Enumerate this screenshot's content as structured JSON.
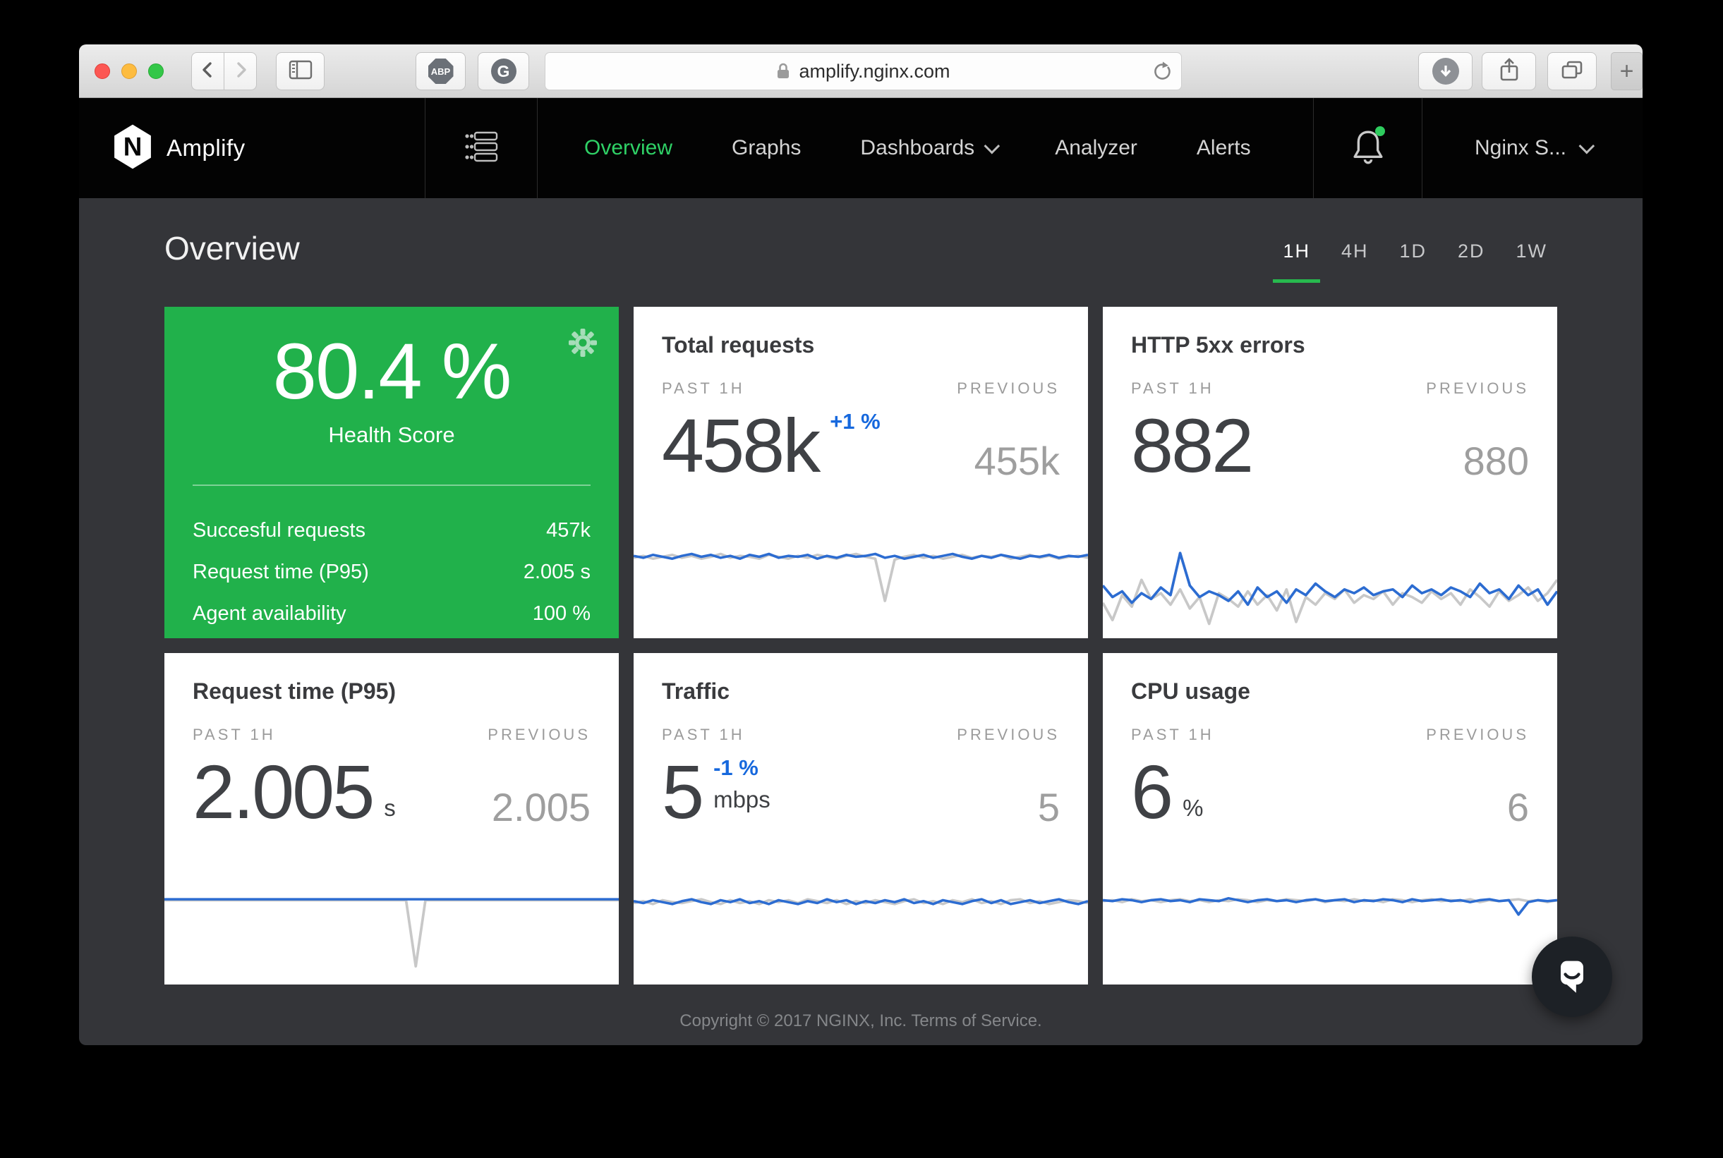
{
  "browser": {
    "url": "amplify.nginx.com",
    "extension_abp": "ABP",
    "extension_g": "G",
    "new_tab": "+"
  },
  "nav": {
    "logo_letter": "N",
    "brand": "Amplify",
    "items": [
      {
        "label": "Overview"
      },
      {
        "label": "Graphs"
      },
      {
        "label": "Dashboards"
      },
      {
        "label": "Analyzer"
      },
      {
        "label": "Alerts"
      }
    ],
    "account": "Nginx S..."
  },
  "page": {
    "title": "Overview",
    "time_ranges": [
      "1H",
      "4H",
      "1D",
      "2D",
      "1W"
    ],
    "active_range": "1H"
  },
  "labels": {
    "period": "PAST 1H",
    "previous": "PREVIOUS"
  },
  "health_card": {
    "score": "80.4 %",
    "label": "Health Score",
    "rows": [
      {
        "label": "Succesful requests",
        "value": "457k"
      },
      {
        "label": "Request time (P95)",
        "value": "2.005 s"
      },
      {
        "label": "Agent availability",
        "value": "100 %"
      }
    ]
  },
  "metric_cards": [
    {
      "title": "Total requests",
      "value": "458k",
      "delta": "+1 %",
      "previous": "455k"
    },
    {
      "title": "HTTP 5xx errors",
      "value": "882",
      "previous": "880"
    },
    {
      "title": "Request time (P95)",
      "value": "2.005",
      "unit": "s",
      "previous": "2.005"
    },
    {
      "title": "Traffic",
      "value": "5",
      "delta": "-1 %",
      "unit": "mbps",
      "previous": "5"
    },
    {
      "title": "CPU usage",
      "value": "6",
      "unit": "%",
      "previous": "6"
    }
  ],
  "footer": {
    "copyright": "Copyright © 2017 NGINX, Inc.",
    "terms": "Terms of Service."
  },
  "colors": {
    "health_green": "#21b14b",
    "nav_active_green": "#2fd166",
    "range_underline_green": "#27b94e",
    "delta_blue": "#1668dd",
    "chart_blue": "#2c6cd1",
    "chart_gray": "#c8c8c8"
  },
  "chart_data": [
    {
      "id": "total-requests",
      "type": "line",
      "title": "Total requests sparkline (past 1h vs previous)",
      "ylim": [
        0,
        1
      ],
      "x": "last 60 min, unitless relative level",
      "series": [
        {
          "name": "previous",
          "color": "#c8c8c8",
          "values": [
            0.81,
            0.83,
            0.8,
            0.82,
            0.84,
            0.81,
            0.83,
            0.8,
            0.82,
            0.85,
            0.81,
            0.83,
            0.82,
            0.8,
            0.84,
            0.82,
            0.8,
            0.83,
            0.81,
            0.84,
            0.82,
            0.8,
            0.83,
            0.85,
            0.82,
            0.8,
            0.36,
            0.79,
            0.82,
            0.84,
            0.81,
            0.83,
            0.8,
            0.82,
            0.84,
            0.81,
            0.83,
            0.82,
            0.84,
            0.8,
            0.82,
            0.84,
            0.81,
            0.83,
            0.8,
            0.82,
            0.83,
            0.81
          ]
        },
        {
          "name": "current",
          "color": "#2c6cd1",
          "values": [
            0.83,
            0.81,
            0.84,
            0.82,
            0.8,
            0.83,
            0.85,
            0.82,
            0.84,
            0.81,
            0.83,
            0.8,
            0.84,
            0.82,
            0.85,
            0.81,
            0.83,
            0.82,
            0.84,
            0.8,
            0.83,
            0.81,
            0.84,
            0.82,
            0.83,
            0.85,
            0.81,
            0.83,
            0.8,
            0.82,
            0.84,
            0.81,
            0.83,
            0.85,
            0.82,
            0.8,
            0.83,
            0.81,
            0.84,
            0.82,
            0.8,
            0.83,
            0.82,
            0.84,
            0.81,
            0.83,
            0.82,
            0.84
          ]
        }
      ]
    },
    {
      "id": "http-5xx-errors",
      "type": "line",
      "title": "HTTP 5xx errors sparkline (past 1h vs previous)",
      "ylim": [
        0,
        1
      ],
      "x": "last 60 min, unitless relative level",
      "series": [
        {
          "name": "previous",
          "color": "#c8c8c8",
          "values": [
            0.34,
            0.16,
            0.42,
            0.3,
            0.58,
            0.38,
            0.44,
            0.32,
            0.48,
            0.28,
            0.4,
            0.12,
            0.44,
            0.38,
            0.3,
            0.46,
            0.32,
            0.42,
            0.26,
            0.48,
            0.14,
            0.4,
            0.32,
            0.44,
            0.38,
            0.48,
            0.34,
            0.42,
            0.38,
            0.46,
            0.32,
            0.44,
            0.4,
            0.34,
            0.46,
            0.38,
            0.44,
            0.32,
            0.48,
            0.4,
            0.3,
            0.46,
            0.36,
            0.42,
            0.5,
            0.36,
            0.44,
            0.58
          ]
        },
        {
          "name": "current",
          "color": "#2c6cd1",
          "values": [
            0.52,
            0.4,
            0.46,
            0.34,
            0.44,
            0.38,
            0.5,
            0.42,
            0.86,
            0.52,
            0.4,
            0.46,
            0.42,
            0.36,
            0.46,
            0.32,
            0.5,
            0.4,
            0.46,
            0.34,
            0.48,
            0.42,
            0.54,
            0.46,
            0.4,
            0.48,
            0.44,
            0.5,
            0.42,
            0.46,
            0.48,
            0.4,
            0.52,
            0.44,
            0.48,
            0.42,
            0.5,
            0.46,
            0.4,
            0.54,
            0.44,
            0.48,
            0.38,
            0.52,
            0.42,
            0.48,
            0.32,
            0.46
          ]
        }
      ]
    },
    {
      "id": "request-time",
      "type": "line",
      "title": "Request time (P95) sparkline (past 1h vs previous)",
      "ylim": [
        0,
        1
      ],
      "x": "last 60 min, unitless relative level",
      "series": [
        {
          "name": "previous",
          "color": "#c8c8c8",
          "values": [
            0.85,
            0.85,
            0.85,
            0.85,
            0.85,
            0.85,
            0.85,
            0.85,
            0.85,
            0.85,
            0.85,
            0.85,
            0.85,
            0.85,
            0.85,
            0.85,
            0.85,
            0.85,
            0.85,
            0.85,
            0.85,
            0.85,
            0.85,
            0.85,
            0.85,
            0.85,
            0.16,
            0.85,
            0.85,
            0.85,
            0.85,
            0.85,
            0.85,
            0.85,
            0.85,
            0.85,
            0.85,
            0.85,
            0.85,
            0.85,
            0.85,
            0.85,
            0.85,
            0.85,
            0.85,
            0.85,
            0.85,
            0.85
          ]
        },
        {
          "name": "current",
          "color": "#2c6cd1",
          "values": [
            0.86,
            0.86,
            0.86,
            0.86,
            0.86,
            0.86,
            0.86,
            0.86,
            0.86,
            0.86,
            0.86,
            0.86,
            0.86,
            0.86,
            0.86,
            0.86,
            0.86,
            0.86,
            0.86,
            0.86,
            0.86,
            0.86,
            0.86,
            0.86,
            0.86,
            0.86,
            0.86,
            0.86,
            0.86,
            0.86,
            0.86,
            0.86,
            0.86,
            0.86,
            0.86,
            0.86,
            0.86,
            0.86,
            0.86,
            0.86,
            0.86,
            0.86,
            0.86,
            0.86,
            0.86,
            0.86,
            0.86,
            0.86
          ]
        }
      ]
    },
    {
      "id": "traffic",
      "type": "line",
      "title": "Traffic sparkline (past 1h vs previous)",
      "ylim": [
        0,
        1
      ],
      "x": "last 60 min, unitless relative level",
      "series": [
        {
          "name": "previous",
          "color": "#c8c8c8",
          "values": [
            0.82,
            0.84,
            0.81,
            0.85,
            0.83,
            0.82,
            0.84,
            0.86,
            0.83,
            0.81,
            0.85,
            0.82,
            0.84,
            0.81,
            0.85,
            0.83,
            0.85,
            0.82,
            0.86,
            0.84,
            0.82,
            0.85,
            0.81,
            0.84,
            0.82,
            0.85,
            0.83,
            0.81,
            0.84,
            0.86,
            0.82,
            0.84,
            0.81,
            0.85,
            0.83,
            0.86,
            0.82,
            0.84,
            0.81,
            0.85,
            0.86,
            0.82,
            0.84,
            0.81,
            0.83,
            0.85,
            0.84,
            0.82
          ]
        },
        {
          "name": "current",
          "color": "#2c6cd1",
          "values": [
            0.84,
            0.82,
            0.85,
            0.83,
            0.81,
            0.84,
            0.86,
            0.83,
            0.81,
            0.85,
            0.83,
            0.86,
            0.82,
            0.84,
            0.81,
            0.85,
            0.83,
            0.81,
            0.84,
            0.82,
            0.86,
            0.83,
            0.85,
            0.81,
            0.84,
            0.82,
            0.85,
            0.83,
            0.86,
            0.82,
            0.84,
            0.81,
            0.85,
            0.83,
            0.81,
            0.84,
            0.86,
            0.82,
            0.85,
            0.81,
            0.83,
            0.85,
            0.82,
            0.84,
            0.86,
            0.83,
            0.81,
            0.84
          ]
        }
      ]
    },
    {
      "id": "cpu-usage",
      "type": "line",
      "title": "CPU usage sparkline (past 1h vs previous)",
      "ylim": [
        0,
        1
      ],
      "x": "last 60 min, unitless relative level",
      "series": [
        {
          "name": "previous",
          "color": "#c8c8c8",
          "values": [
            0.84,
            0.85,
            0.83,
            0.86,
            0.84,
            0.85,
            0.83,
            0.85,
            0.86,
            0.84,
            0.85,
            0.83,
            0.85,
            0.84,
            0.86,
            0.85,
            0.83,
            0.85,
            0.84,
            0.86,
            0.85,
            0.84,
            0.86,
            0.83,
            0.85,
            0.84,
            0.86,
            0.84,
            0.85,
            0.83,
            0.86,
            0.85,
            0.83,
            0.85,
            0.86,
            0.84,
            0.85,
            0.84,
            0.86,
            0.83,
            0.85,
            0.84,
            0.85,
            0.86,
            0.84,
            0.85,
            0.83,
            0.85
          ]
        },
        {
          "name": "current",
          "color": "#2c6cd1",
          "values": [
            0.85,
            0.84,
            0.86,
            0.85,
            0.83,
            0.85,
            0.86,
            0.84,
            0.85,
            0.83,
            0.86,
            0.85,
            0.84,
            0.87,
            0.85,
            0.83,
            0.85,
            0.86,
            0.84,
            0.85,
            0.83,
            0.85,
            0.86,
            0.84,
            0.85,
            0.86,
            0.83,
            0.85,
            0.84,
            0.86,
            0.85,
            0.83,
            0.86,
            0.84,
            0.85,
            0.86,
            0.84,
            0.85,
            0.83,
            0.85,
            0.86,
            0.84,
            0.85,
            0.7,
            0.83,
            0.85,
            0.84,
            0.85
          ]
        }
      ]
    }
  ]
}
